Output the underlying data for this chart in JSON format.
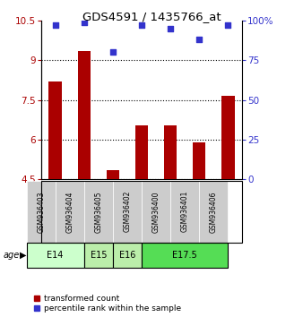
{
  "title": "GDS4591 / 1435766_at",
  "samples": [
    "GSM936403",
    "GSM936404",
    "GSM936405",
    "GSM936402",
    "GSM936400",
    "GSM936401",
    "GSM936406"
  ],
  "bar_values": [
    8.2,
    9.35,
    4.85,
    6.55,
    6.55,
    5.9,
    7.65
  ],
  "dot_values": [
    97,
    99,
    80,
    97,
    95,
    88,
    97
  ],
  "ylim_left": [
    4.5,
    10.5
  ],
  "ylim_right": [
    0,
    100
  ],
  "yticks_left": [
    4.5,
    6.0,
    7.5,
    9.0,
    10.5
  ],
  "ytick_labels_left": [
    "4.5",
    "6",
    "7.5",
    "9",
    "10.5"
  ],
  "yticks_right": [
    0,
    25,
    50,
    75,
    100
  ],
  "ytick_labels_right": [
    "0",
    "25",
    "50",
    "75",
    "100%"
  ],
  "bar_color": "#aa0000",
  "dot_color": "#3333cc",
  "age_groups": [
    {
      "label": "E14",
      "start": 0,
      "end": 2,
      "color": "#ccffcc"
    },
    {
      "label": "E15",
      "start": 2,
      "end": 3,
      "color": "#bbeeaa"
    },
    {
      "label": "E16",
      "start": 3,
      "end": 4,
      "color": "#bbeeaa"
    },
    {
      "label": "E17.5",
      "start": 4,
      "end": 7,
      "color": "#55dd55"
    }
  ],
  "age_label": "age",
  "legend_bar_label": "transformed count",
  "legend_dot_label": "percentile rank within the sample",
  "sample_box_color": "#cccccc"
}
